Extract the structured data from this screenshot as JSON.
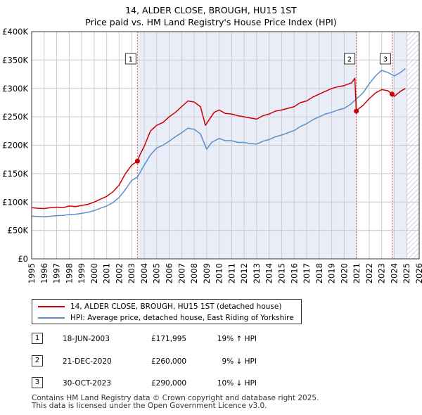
{
  "title_line1": "14, ALDER CLOSE, BROUGH, HU15 1ST",
  "title_line2": "Price paid vs. HM Land Registry's House Price Index (HPI)",
  "colors": {
    "property": "#cc0000",
    "hpi": "#5b8fc9",
    "shade": "#e8edf8",
    "future_hatch": "#b8c2d2",
    "grid": "#cccccc",
    "vline": "#e06060"
  },
  "chart_data": {
    "type": "line",
    "title": "14, ALDER CLOSE, BROUGH, HU15 1ST - Price paid vs. HM Land Registry's House Price Index (HPI)",
    "xlim": [
      1995,
      2026
    ],
    "ylim": [
      0,
      400000
    ],
    "x_ticks": [
      1995,
      1996,
      1997,
      1998,
      1999,
      2000,
      2001,
      2002,
      2003,
      2004,
      2005,
      2006,
      2007,
      2008,
      2009,
      2010,
      2011,
      2012,
      2013,
      2014,
      2015,
      2016,
      2017,
      2018,
      2019,
      2020,
      2021,
      2022,
      2023,
      2024,
      2025,
      2026
    ],
    "y_ticks": [
      0,
      50000,
      100000,
      150000,
      200000,
      250000,
      300000,
      350000,
      400000
    ],
    "y_tick_labels": [
      "£0",
      "£50K",
      "£100K",
      "£150K",
      "£200K",
      "£250K",
      "£300K",
      "£350K",
      "£400K"
    ],
    "hatch_from": 2025.0,
    "series": [
      {
        "name": "14, ALDER CLOSE, BROUGH, HU15 1ST (detached house)",
        "color": "#cc0000",
        "points": [
          [
            1995.0,
            90000
          ],
          [
            1995.5,
            89000
          ],
          [
            1996.0,
            88500
          ],
          [
            1996.5,
            90000
          ],
          [
            1997.0,
            91000
          ],
          [
            1997.5,
            90000
          ],
          [
            1998.0,
            93000
          ],
          [
            1998.5,
            92000
          ],
          [
            1999.0,
            94000
          ],
          [
            1999.5,
            96000
          ],
          [
            2000.0,
            100000
          ],
          [
            2000.5,
            105000
          ],
          [
            2001.0,
            110000
          ],
          [
            2001.5,
            118000
          ],
          [
            2002.0,
            130000
          ],
          [
            2002.5,
            150000
          ],
          [
            2003.0,
            165000
          ],
          [
            2003.46,
            171995
          ],
          [
            2003.7,
            185000
          ],
          [
            2004.0,
            198000
          ],
          [
            2004.5,
            225000
          ],
          [
            2005.0,
            235000
          ],
          [
            2005.5,
            240000
          ],
          [
            2006.0,
            250000
          ],
          [
            2006.5,
            258000
          ],
          [
            2007.0,
            268000
          ],
          [
            2007.5,
            278000
          ],
          [
            2008.0,
            276000
          ],
          [
            2008.5,
            268000
          ],
          [
            2008.9,
            235000
          ],
          [
            2009.2,
            245000
          ],
          [
            2009.6,
            258000
          ],
          [
            2010.0,
            262000
          ],
          [
            2010.5,
            256000
          ],
          [
            2011.0,
            255000
          ],
          [
            2011.5,
            252000
          ],
          [
            2012.0,
            250000
          ],
          [
            2012.5,
            248000
          ],
          [
            2013.0,
            246000
          ],
          [
            2013.5,
            252000
          ],
          [
            2014.0,
            255000
          ],
          [
            2014.5,
            260000
          ],
          [
            2015.0,
            262000
          ],
          [
            2015.5,
            265000
          ],
          [
            2016.0,
            268000
          ],
          [
            2016.5,
            275000
          ],
          [
            2017.0,
            278000
          ],
          [
            2017.5,
            285000
          ],
          [
            2018.0,
            290000
          ],
          [
            2018.5,
            295000
          ],
          [
            2019.0,
            300000
          ],
          [
            2019.5,
            303000
          ],
          [
            2020.0,
            305000
          ],
          [
            2020.6,
            310000
          ],
          [
            2020.85,
            318000
          ],
          [
            2020.97,
            260000
          ],
          [
            2021.2,
            265000
          ],
          [
            2021.5,
            270000
          ],
          [
            2022.0,
            282000
          ],
          [
            2022.5,
            292000
          ],
          [
            2023.0,
            298000
          ],
          [
            2023.5,
            296000
          ],
          [
            2023.83,
            290000
          ],
          [
            2024.0,
            286000
          ],
          [
            2024.5,
            295000
          ],
          [
            2024.9,
            300000
          ]
        ]
      },
      {
        "name": "HPI: Average price, detached house, East Riding of Yorkshire",
        "color": "#5b8fc9",
        "points": [
          [
            1995.0,
            75000
          ],
          [
            1995.5,
            74500
          ],
          [
            1996.0,
            74000
          ],
          [
            1996.5,
            75000
          ],
          [
            1997.0,
            76000
          ],
          [
            1997.5,
            76500
          ],
          [
            1998.0,
            78000
          ],
          [
            1998.5,
            78500
          ],
          [
            1999.0,
            80000
          ],
          [
            1999.5,
            82000
          ],
          [
            2000.0,
            85000
          ],
          [
            2000.5,
            89000
          ],
          [
            2001.0,
            93000
          ],
          [
            2001.5,
            99000
          ],
          [
            2002.0,
            108000
          ],
          [
            2002.5,
            122000
          ],
          [
            2003.0,
            138000
          ],
          [
            2003.46,
            144000
          ],
          [
            2004.0,
            165000
          ],
          [
            2004.5,
            183000
          ],
          [
            2005.0,
            195000
          ],
          [
            2005.5,
            200000
          ],
          [
            2006.0,
            207000
          ],
          [
            2006.5,
            215000
          ],
          [
            2007.0,
            222000
          ],
          [
            2007.5,
            230000
          ],
          [
            2008.0,
            228000
          ],
          [
            2008.5,
            220000
          ],
          [
            2009.0,
            193000
          ],
          [
            2009.4,
            205000
          ],
          [
            2010.0,
            212000
          ],
          [
            2010.5,
            208000
          ],
          [
            2011.0,
            208000
          ],
          [
            2011.5,
            205000
          ],
          [
            2012.0,
            205000
          ],
          [
            2012.5,
            203000
          ],
          [
            2013.0,
            202000
          ],
          [
            2013.5,
            207000
          ],
          [
            2014.0,
            210000
          ],
          [
            2014.5,
            215000
          ],
          [
            2015.0,
            218000
          ],
          [
            2015.5,
            222000
          ],
          [
            2016.0,
            226000
          ],
          [
            2016.5,
            233000
          ],
          [
            2017.0,
            238000
          ],
          [
            2017.5,
            245000
          ],
          [
            2018.0,
            250000
          ],
          [
            2018.5,
            255000
          ],
          [
            2019.0,
            258000
          ],
          [
            2019.5,
            262000
          ],
          [
            2020.0,
            265000
          ],
          [
            2020.5,
            272000
          ],
          [
            2021.0,
            282000
          ],
          [
            2021.5,
            292000
          ],
          [
            2022.0,
            308000
          ],
          [
            2022.5,
            322000
          ],
          [
            2023.0,
            332000
          ],
          [
            2023.5,
            328000
          ],
          [
            2024.0,
            322000
          ],
          [
            2024.5,
            328000
          ],
          [
            2024.9,
            335000
          ]
        ]
      }
    ],
    "markers": [
      {
        "label": "1",
        "x": 2003.46,
        "y": 171995
      },
      {
        "label": "2",
        "x": 2020.97,
        "y": 260000
      },
      {
        "label": "3",
        "x": 2023.83,
        "y": 290000
      }
    ],
    "shaded_regions": [
      [
        2003.46,
        2020.97
      ],
      [
        2023.83,
        2025.0
      ]
    ]
  },
  "legend": {
    "property_label": "14, ALDER CLOSE, BROUGH, HU15 1ST (detached house)",
    "hpi_label": "HPI: Average price, detached house, East Riding of Yorkshire"
  },
  "transactions": [
    {
      "num": "1",
      "date": "18-JUN-2003",
      "price": "£171,995",
      "hpi": "19% ↑ HPI"
    },
    {
      "num": "2",
      "date": "21-DEC-2020",
      "price": "£260,000",
      "hpi": "9% ↓ HPI"
    },
    {
      "num": "3",
      "date": "30-OCT-2023",
      "price": "£290,000",
      "hpi": "10% ↓ HPI"
    }
  ],
  "footer_line1": "Contains HM Land Registry data © Crown copyright and database right 2025.",
  "footer_line2": "This data is licensed under the Open Government Licence v3.0."
}
